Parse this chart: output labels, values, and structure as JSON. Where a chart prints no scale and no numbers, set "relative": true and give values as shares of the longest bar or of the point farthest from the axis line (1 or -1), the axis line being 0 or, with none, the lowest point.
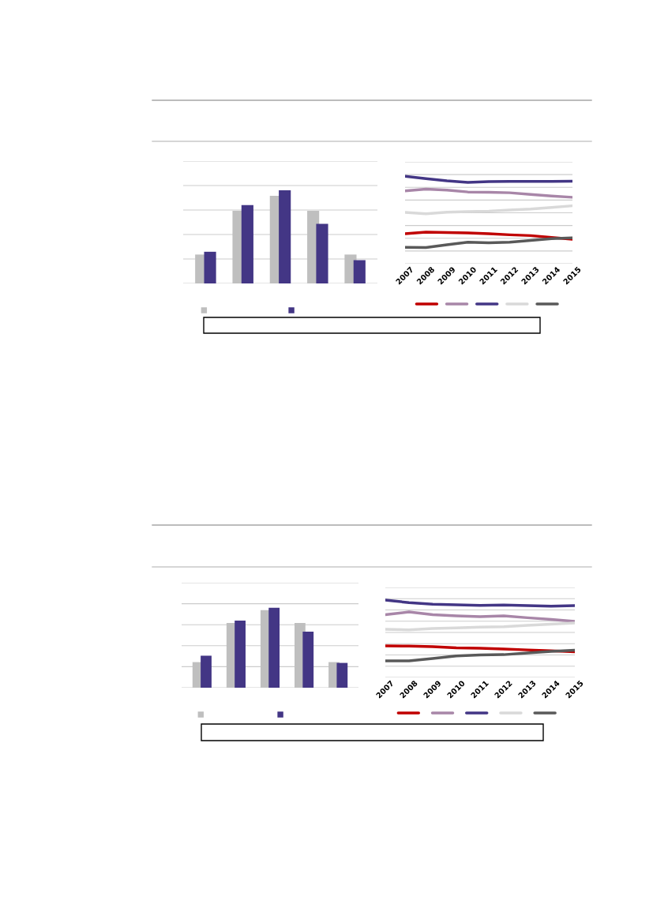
{
  "chart_data": [
    {
      "type": "bar",
      "relative": true,
      "categories": [
        null,
        null,
        null,
        null,
        null
      ],
      "grid": "y",
      "series": [
        {
          "color": "#bfbfbf",
          "values": [
            0.31,
            0.78,
            0.94,
            0.78,
            0.31
          ]
        },
        {
          "color": "#433685",
          "values": [
            0.34,
            0.84,
            1,
            0.64,
            0.25
          ]
        }
      ]
    },
    {
      "type": "line",
      "relative": true,
      "categories": [
        "2007",
        "2008",
        "2009",
        "2010",
        "2011",
        "2012",
        "2013",
        "2014",
        "2015"
      ],
      "grid": "y",
      "marker": "none",
      "line_style": "solid",
      "series": [
        {
          "color": "#c00000",
          "values": [
            0.343,
            0.362,
            0.356,
            0.353,
            0.343,
            0.331,
            0.322,
            0.301,
            0.28
          ]
        },
        {
          "color": "#a886a8",
          "values": [
            0.833,
            0.854,
            0.842,
            0.821,
            0.818,
            0.812,
            0.793,
            0.775,
            0.76
          ]
        },
        {
          "color": "#433685",
          "values": [
            1,
            0.973,
            0.948,
            0.93,
            0.939,
            0.942,
            0.942,
            0.942,
            0.945
          ]
        },
        {
          "color": "#d9d9d9",
          "values": [
            0.587,
            0.571,
            0.59,
            0.596,
            0.602,
            0.614,
            0.626,
            0.644,
            0.663
          ]
        },
        {
          "color": "#595959",
          "values": [
            0.188,
            0.185,
            0.216,
            0.246,
            0.24,
            0.246,
            0.267,
            0.286,
            0.295
          ]
        }
      ]
    },
    {
      "type": "bar",
      "relative": true,
      "categories": [
        null,
        null,
        null,
        null,
        null
      ],
      "grid": "y",
      "series": [
        {
          "color": "#bfbfbf",
          "values": [
            0.32,
            0.81,
            0.97,
            0.81,
            0.32
          ]
        },
        {
          "color": "#433685",
          "values": [
            0.4,
            0.84,
            1,
            0.7,
            0.31
          ]
        }
      ]
    },
    {
      "type": "line",
      "relative": true,
      "categories": [
        "2007",
        "2008",
        "2009",
        "2010",
        "2011",
        "2012",
        "2013",
        "2014",
        "2015"
      ],
      "grid": "y",
      "marker": "none",
      "line_style": "solid",
      "series": [
        {
          "color": "#c00000",
          "values": [
            0.409,
            0.406,
            0.399,
            0.384,
            0.377,
            0.367,
            0.356,
            0.345,
            0.331
          ]
        },
        {
          "color": "#a886a8",
          "values": [
            0.811,
            0.847,
            0.811,
            0.797,
            0.786,
            0.797,
            0.772,
            0.751,
            0.726
          ]
        },
        {
          "color": "#433685",
          "values": [
            1,
            0.968,
            0.947,
            0.94,
            0.932,
            0.936,
            0.929,
            0.922,
            0.929
          ]
        },
        {
          "color": "#d9d9d9",
          "values": [
            0.623,
            0.616,
            0.633,
            0.641,
            0.651,
            0.655,
            0.673,
            0.69,
            0.705
          ]
        },
        {
          "color": "#595959",
          "values": [
            0.214,
            0.214,
            0.246,
            0.278,
            0.292,
            0.295,
            0.317,
            0.338,
            0.352
          ]
        }
      ]
    }
  ]
}
